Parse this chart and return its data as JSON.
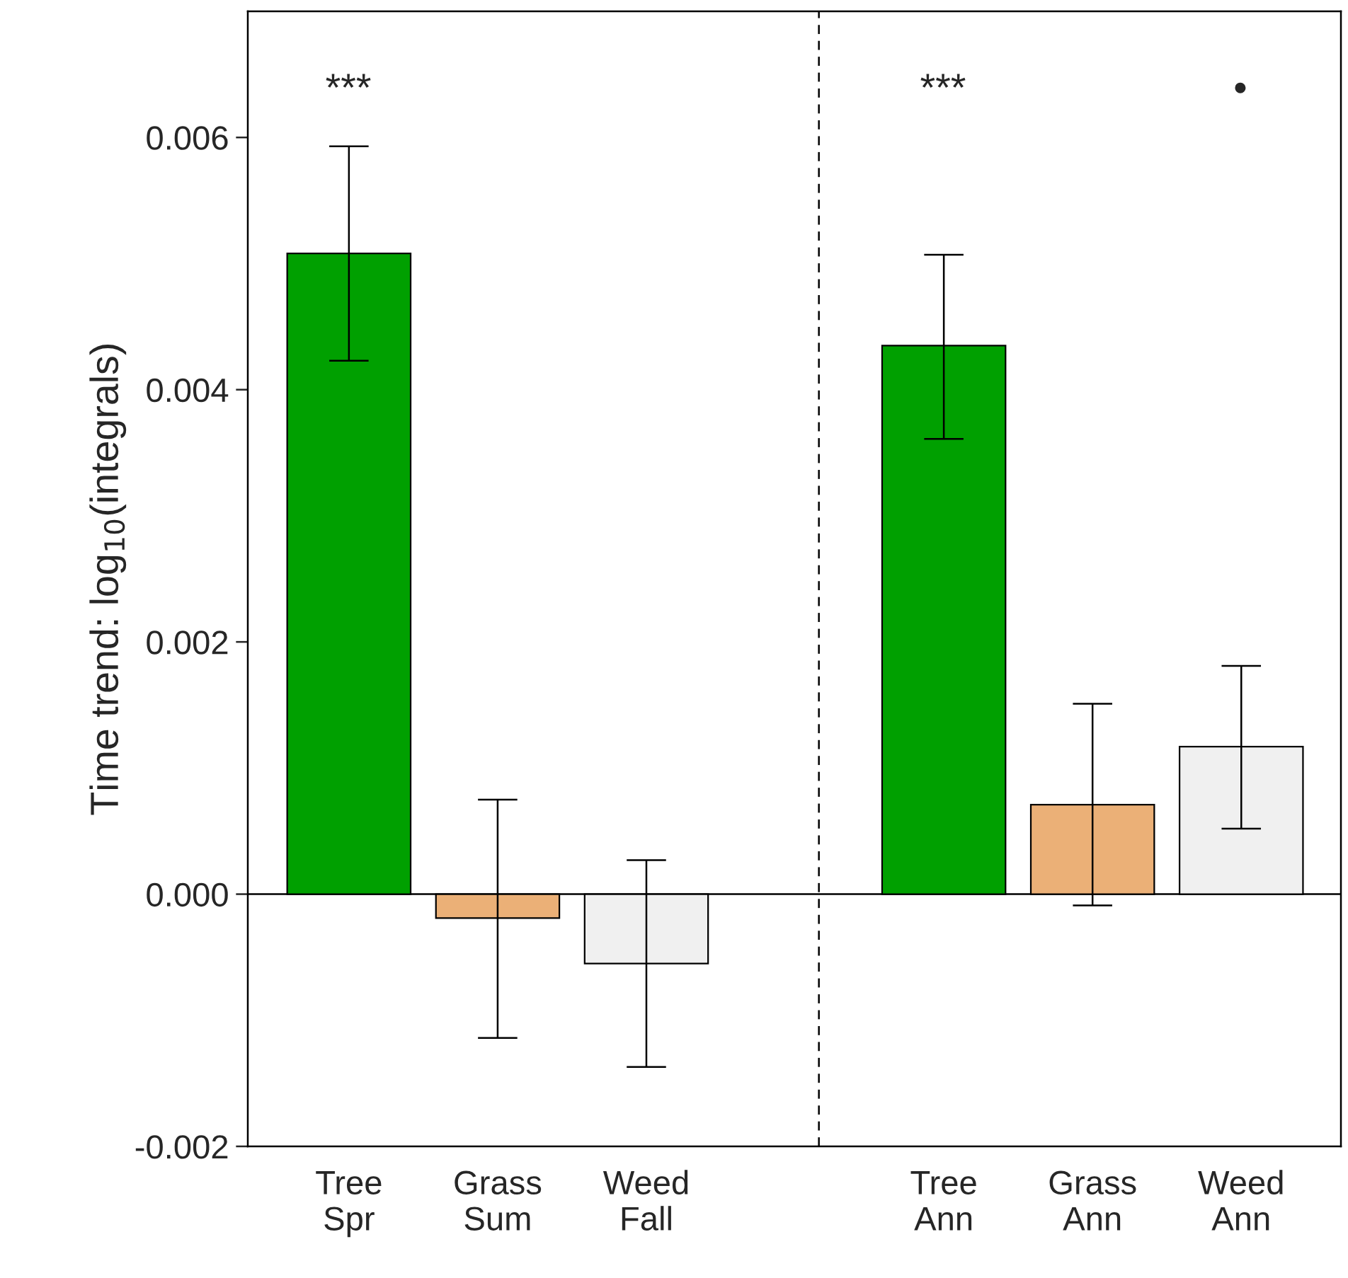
{
  "chart_data": {
    "type": "bar",
    "ylabel": "Time trend: log$_{10}$(integrals)",
    "categories": [
      "Tree\nSpr",
      "Grass\nSum",
      "Weed\nFall",
      null,
      "Tree\nAnn",
      "Grass\nAnn",
      "Weed\nAnn"
    ],
    "values": [
      0.00508,
      -0.00019,
      -0.00055,
      null,
      0.00435,
      0.00071,
      0.00117
    ],
    "colors": [
      "#00a000",
      "#ebb077",
      "#f0f0f0",
      "#f0f0f0",
      "#00a000",
      "#ebb077",
      "#f0f0f0"
    ],
    "errors": [
      [
        0.00423,
        0.00593
      ],
      [
        -0.00114,
        0.00075
      ],
      [
        -0.00137,
        0.00027
      ],
      null,
      [
        0.00361,
        0.00507
      ],
      [
        -9e-05,
        0.00151
      ],
      [
        0.00052,
        0.00181
      ]
    ],
    "ylim": [
      -0.002,
      0.007
    ],
    "yticks": [
      {
        "value": -0.002,
        "label": "-0.002"
      },
      {
        "value": 0,
        "label": "0.000"
      },
      {
        "value": 0.002,
        "label": "0.002"
      },
      {
        "value": 0.004,
        "label": "0.004"
      },
      {
        "value": 0.006,
        "label": "0.006"
      }
    ],
    "ref_lines": [
      {
        "axis": "y",
        "value": 0,
        "color": "#000000",
        "line_style": "solid"
      }
    ],
    "annotations": [
      "***",
      "***",
      "•"
    ],
    "grid": false,
    "legend": false
  }
}
